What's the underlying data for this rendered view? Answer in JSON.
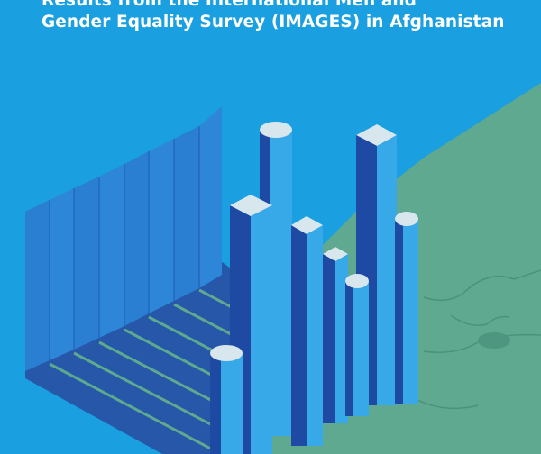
{
  "cover": {
    "title_line_1": "Results from the International Men and",
    "title_line_2": "Gender Equality Survey (IMAGES) in Afghanistan"
  },
  "colors": {
    "sky": "#1aa0e0",
    "land": "#5ea98f",
    "bar_face": "#38a9e8",
    "bar_side": "#1f4aa3",
    "bar_top": "#d8e7ee",
    "wall": "#2a7fd3",
    "shadow": "#2657a8"
  }
}
